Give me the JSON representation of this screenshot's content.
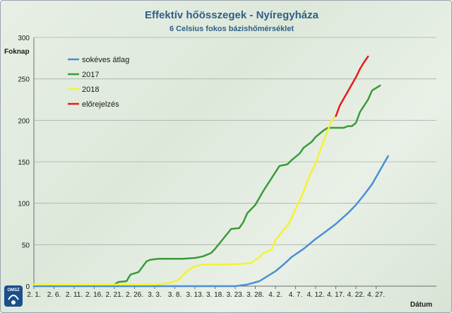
{
  "chart_data": {
    "type": "line",
    "title": "Effektív hőösszegek - Nyíregyháza",
    "subtitle": "6 Celsius fokos bázishőmérséklet",
    "ylabel": "Foknap",
    "xlabel": "Dátum",
    "ylim": [
      0,
      300
    ],
    "yticks": [
      0,
      50,
      100,
      150,
      200,
      250,
      300
    ],
    "xlim": [
      0,
      100
    ],
    "xticks": [
      {
        "x": 0,
        "label": "2. 1."
      },
      {
        "x": 5,
        "label": "2. 6."
      },
      {
        "x": 10,
        "label": "2. 11."
      },
      {
        "x": 15,
        "label": "2. 16."
      },
      {
        "x": 20,
        "label": "2. 21."
      },
      {
        "x": 25,
        "label": "2. 26."
      },
      {
        "x": 30,
        "label": "3. 3."
      },
      {
        "x": 35,
        "label": "3. 8."
      },
      {
        "x": 40,
        "label": "3. 13."
      },
      {
        "x": 45,
        "label": "3. 18."
      },
      {
        "x": 50,
        "label": "3. 23."
      },
      {
        "x": 55,
        "label": "3. 28."
      },
      {
        "x": 60,
        "label": "4. 2."
      },
      {
        "x": 65,
        "label": "4. 7."
      },
      {
        "x": 70,
        "label": "4. 12."
      },
      {
        "x": 75,
        "label": "4. 17."
      },
      {
        "x": 80,
        "label": "4. 22."
      },
      {
        "x": 85,
        "label": "4. 27."
      }
    ],
    "grid": "horizontal",
    "legend_position": "top-left",
    "series": [
      {
        "name": "sokéves átlag",
        "color": "#4a8fd4",
        "points": [
          [
            0,
            0
          ],
          [
            44,
            0
          ],
          [
            50,
            0
          ],
          [
            53,
            2
          ],
          [
            56,
            6
          ],
          [
            58,
            12
          ],
          [
            60,
            18
          ],
          [
            62,
            26
          ],
          [
            64,
            35
          ],
          [
            67,
            45
          ],
          [
            70,
            57
          ],
          [
            72,
            64
          ],
          [
            75,
            75
          ],
          [
            78,
            88
          ],
          [
            80,
            98
          ],
          [
            82,
            110
          ],
          [
            84,
            123
          ],
          [
            86,
            140
          ],
          [
            88,
            157
          ]
        ]
      },
      {
        "name": "2017",
        "color": "#3a9a3a",
        "points": [
          [
            0,
            2
          ],
          [
            20,
            2
          ],
          [
            21,
            5
          ],
          [
            23,
            6
          ],
          [
            24,
            14
          ],
          [
            26,
            17
          ],
          [
            28,
            30
          ],
          [
            29,
            32
          ],
          [
            31,
            33
          ],
          [
            37,
            33
          ],
          [
            40,
            34
          ],
          [
            42,
            36
          ],
          [
            44,
            40
          ],
          [
            45,
            45
          ],
          [
            47,
            57
          ],
          [
            49,
            69
          ],
          [
            51,
            70
          ],
          [
            52,
            77
          ],
          [
            53,
            88
          ],
          [
            55,
            98
          ],
          [
            57,
            115
          ],
          [
            59,
            130
          ],
          [
            61,
            145
          ],
          [
            63,
            147
          ],
          [
            64,
            152
          ],
          [
            66,
            160
          ],
          [
            67,
            167
          ],
          [
            69,
            174
          ],
          [
            70,
            180
          ],
          [
            72,
            188
          ],
          [
            73,
            191
          ],
          [
            76,
            191
          ],
          [
            77,
            191
          ],
          [
            78,
            193
          ],
          [
            79,
            193
          ],
          [
            80,
            197
          ],
          [
            81,
            210
          ],
          [
            83,
            225
          ],
          [
            84,
            236
          ],
          [
            86,
            242
          ]
        ]
      },
      {
        "name": "2018",
        "color": "#f5f232",
        "points": [
          [
            0,
            2
          ],
          [
            30,
            2
          ],
          [
            34,
            4
          ],
          [
            36,
            8
          ],
          [
            38,
            18
          ],
          [
            40,
            24
          ],
          [
            42,
            26
          ],
          [
            47,
            26
          ],
          [
            52,
            27
          ],
          [
            54,
            28
          ],
          [
            56,
            35
          ],
          [
            57,
            40
          ],
          [
            59,
            44
          ],
          [
            60,
            55
          ],
          [
            62,
            68
          ],
          [
            63,
            73
          ],
          [
            64,
            82
          ],
          [
            65,
            93
          ],
          [
            66,
            103
          ],
          [
            67,
            114
          ],
          [
            68,
            128
          ],
          [
            70,
            148
          ],
          [
            71,
            162
          ],
          [
            72,
            175
          ],
          [
            73,
            188
          ],
          [
            74,
            200
          ],
          [
            75,
            205
          ]
        ]
      },
      {
        "name": "előrejelzés",
        "color": "#e81a1a",
        "points": [
          [
            75,
            205
          ],
          [
            76,
            218
          ],
          [
            78,
            235
          ],
          [
            80,
            252
          ],
          [
            81,
            262
          ],
          [
            82,
            270
          ],
          [
            83,
            277
          ]
        ]
      }
    ]
  },
  "badge": {
    "text": "OMSZ"
  }
}
